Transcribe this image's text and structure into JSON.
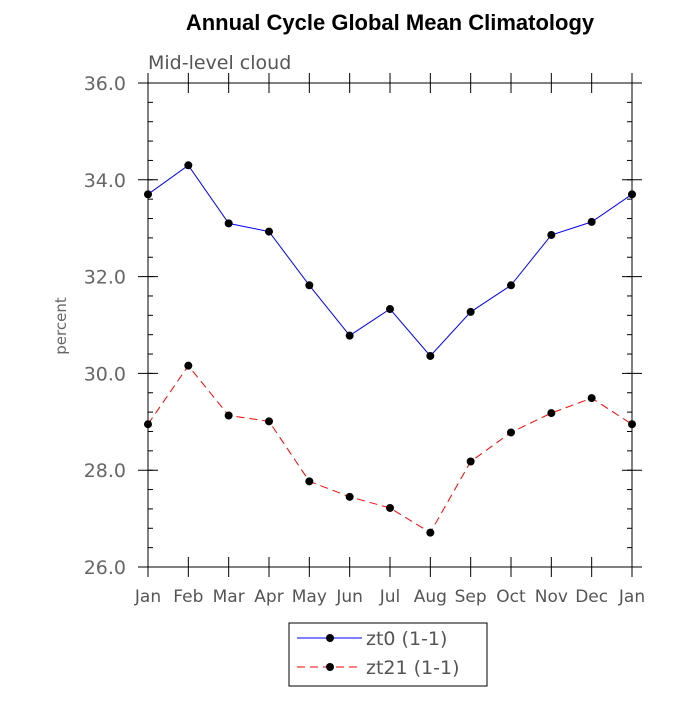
{
  "chart_data": {
    "type": "line",
    "title": "Annual Cycle Global Mean Climatology",
    "subtitle": "Mid-level cloud",
    "xlabel": "",
    "ylabel": "percent",
    "ylim": [
      26.0,
      36.0
    ],
    "yticks": [
      "26.0",
      "28.0",
      "30.0",
      "32.0",
      "34.0",
      "36.0"
    ],
    "ytick_values": [
      26,
      28,
      30,
      32,
      34,
      36
    ],
    "categories": [
      "Jan",
      "Feb",
      "Mar",
      "Apr",
      "May",
      "Jun",
      "Jul",
      "Aug",
      "Sep",
      "Oct",
      "Nov",
      "Dec",
      "Jan"
    ],
    "grid": false,
    "legend_position": "bottom-center",
    "series": [
      {
        "name": "zt0 (1-1)",
        "color": "#0000ff",
        "style": "solid",
        "values": [
          33.7,
          34.3,
          33.1,
          32.93,
          31.82,
          30.78,
          31.33,
          30.36,
          31.27,
          31.82,
          32.86,
          33.13,
          33.7
        ]
      },
      {
        "name": "zt21 (1-1)",
        "color": "#ff0000",
        "style": "dashed",
        "values": [
          28.95,
          30.16,
          29.13,
          29.01,
          27.77,
          27.45,
          27.22,
          26.71,
          28.18,
          28.78,
          29.18,
          29.49,
          28.95
        ]
      }
    ]
  }
}
